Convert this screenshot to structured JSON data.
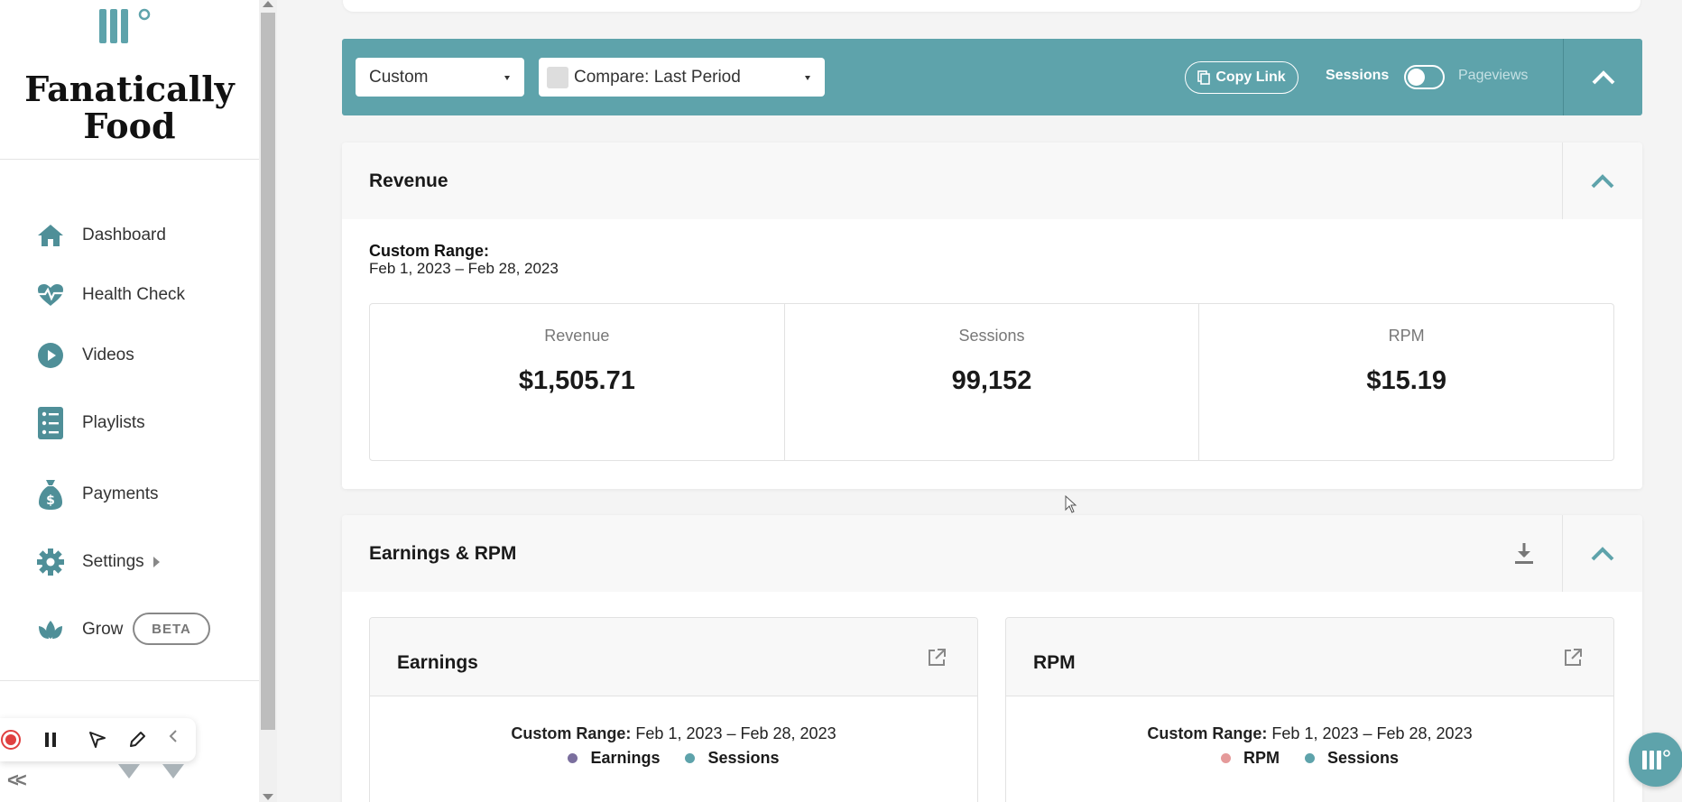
{
  "brand": {
    "name": "Fanatically Food"
  },
  "sidebar": {
    "items": [
      {
        "label": "Dashboard",
        "icon": "home-icon"
      },
      {
        "label": "Health Check",
        "icon": "heartbeat-icon"
      },
      {
        "label": "Videos",
        "icon": "play-icon"
      },
      {
        "label": "Playlists",
        "icon": "list-icon"
      },
      {
        "label": "Payments",
        "icon": "money-bag-icon"
      },
      {
        "label": "Settings",
        "icon": "gear-icon"
      },
      {
        "label": "Grow",
        "icon": "leaf-icon",
        "badge": "BETA"
      }
    ],
    "collapse_label": "<<"
  },
  "filters": {
    "range_select": "Custom",
    "compare_select": "Compare: Last Period",
    "copy_link": "Copy Link",
    "toggle_on_label": "Sessions",
    "toggle_off_label": "Pageviews"
  },
  "revenue_panel": {
    "title": "Revenue",
    "range_label": "Custom Range:",
    "range_dates": "Feb 1, 2023 – Feb 28, 2023",
    "metrics": [
      {
        "name": "Revenue",
        "value": "$1,505.71"
      },
      {
        "name": "Sessions",
        "value": "99,152"
      },
      {
        "name": "RPM",
        "value": "$15.19"
      }
    ]
  },
  "earnings_panel": {
    "title": "Earnings & RPM",
    "cards": [
      {
        "title": "Earnings",
        "range_label": "Custom Range:",
        "range_dates": "Feb 1, 2023 – Feb 28, 2023",
        "legend": [
          {
            "label": "Earnings",
            "color": "#7b6f9e"
          },
          {
            "label": "Sessions",
            "color": "#5ea3ab"
          }
        ]
      },
      {
        "title": "RPM",
        "range_label": "Custom Range:",
        "range_dates": "Feb 1, 2023 – Feb 28, 2023",
        "legend": [
          {
            "label": "RPM",
            "color": "#e59a9a"
          },
          {
            "label": "Sessions",
            "color": "#5ea3ab"
          }
        ]
      }
    ]
  },
  "colors": {
    "accent": "#5ea3ab",
    "icon": "#4f8f98"
  }
}
